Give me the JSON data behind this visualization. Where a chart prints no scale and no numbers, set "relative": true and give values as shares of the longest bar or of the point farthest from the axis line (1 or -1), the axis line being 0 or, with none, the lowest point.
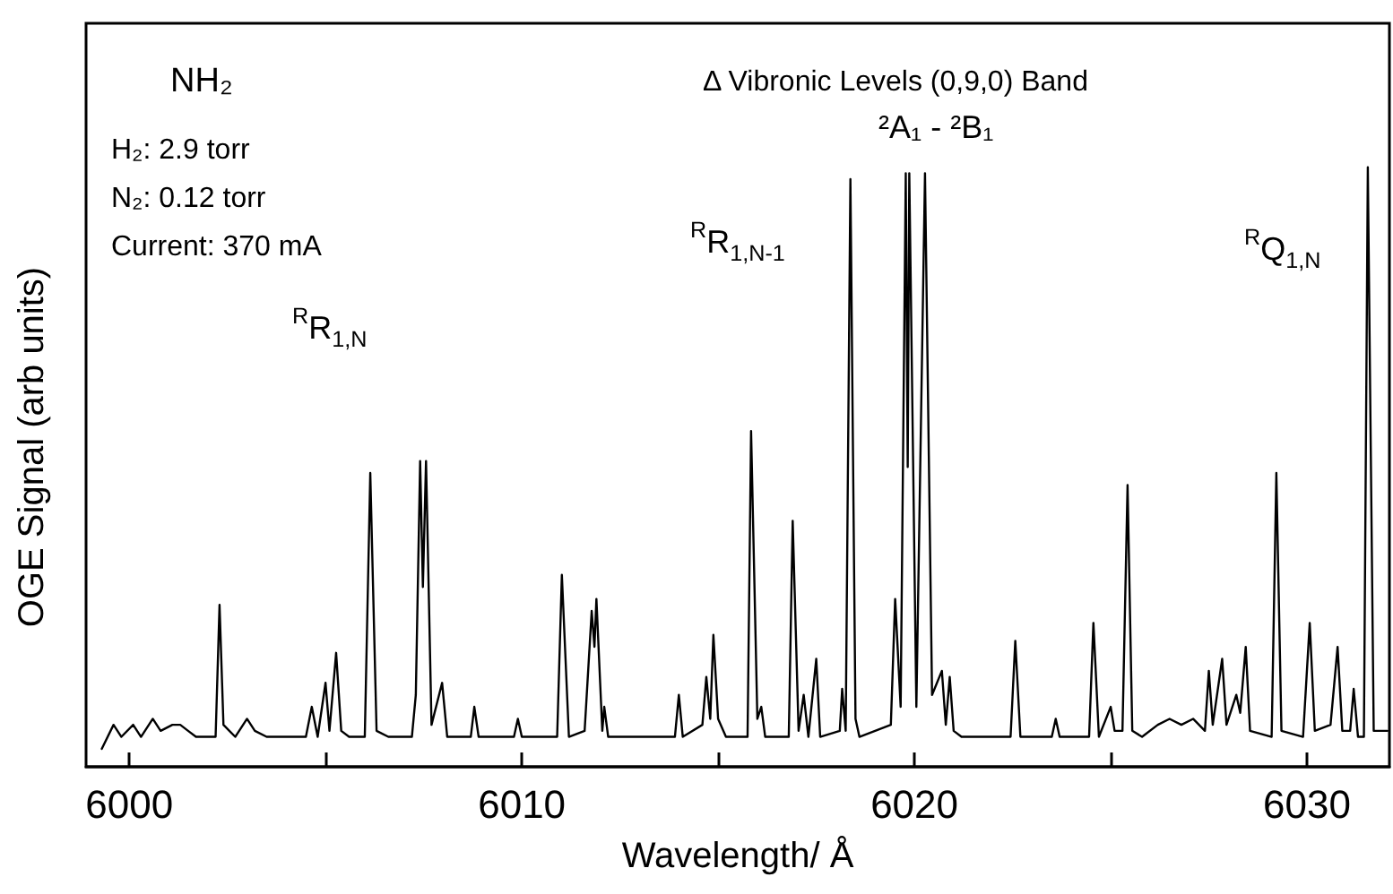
{
  "chart_data": {
    "type": "line",
    "relative": true,
    "color": "#000000",
    "marker": "none",
    "line_style": "solid",
    "grid": false,
    "xlabel": "Wavelength/ Å",
    "ylabel": "OGE Signal (arb units)",
    "xlim": [
      5998.9,
      6032.1
    ],
    "xticks": [
      6000,
      {
        "value": 6005,
        "label": null
      },
      6010,
      {
        "value": 6015,
        "label": null
      },
      6020,
      {
        "value": 6025,
        "label": null
      },
      6030
    ],
    "annotations": [
      "NH₂",
      "H₂: 2.9 torr",
      "N₂: 0.12 torr",
      "Current: 370 mA",
      "Δ Vibronic Levels (0,9,0) Band",
      "²A₁ - ²B₁",
      "$^{R}$R$_{1,N}$",
      "$^{R}$R$_{1,N-1}$",
      "$^{R}$Q$_{1,N}$"
    ],
    "x": [
      5999.3,
      5999.6,
      5999.8,
      6000.1,
      6000.3,
      6000.6,
      6000.8,
      6001.1,
      6001.3,
      6001.5,
      6001.7,
      6002.2,
      6002.3,
      6002.4,
      6002.7,
      6003.0,
      6003.2,
      6003.5,
      6004.5,
      6004.65,
      6004.8,
      6005.0,
      6005.1,
      6005.27,
      6005.4,
      6005.6,
      6006.0,
      6006.14,
      6006.3,
      6006.6,
      6007.2,
      6007.3,
      6007.41,
      6007.48,
      6007.56,
      6007.7,
      6007.97,
      6008.1,
      6008.7,
      6008.79,
      6008.9,
      6009.8,
      6009.9,
      6010.0,
      6010.9,
      6011.02,
      6011.2,
      6011.6,
      6011.78,
      6011.85,
      6011.9,
      6012.05,
      6012.1,
      6012.2,
      6013.9,
      6014.0,
      6014.1,
      6014.6,
      6014.7,
      6014.8,
      6014.88,
      6015.0,
      6015.2,
      6015.75,
      6015.84,
      6016.0,
      6016.1,
      6016.2,
      6016.8,
      6016.9,
      6017.05,
      6017.18,
      6017.3,
      6017.5,
      6017.6,
      6018.1,
      6018.16,
      6018.25,
      6018.37,
      6018.5,
      6018.6,
      6019.4,
      6019.51,
      6019.65,
      6019.78,
      6019.83,
      6019.87,
      6020.05,
      6020.27,
      6020.45,
      6020.7,
      6020.8,
      6020.9,
      6021.0,
      6021.2,
      6022.45,
      6022.57,
      6022.7,
      6023.5,
      6023.6,
      6023.7,
      6024.45,
      6024.56,
      6024.7,
      6025.0,
      6025.1,
      6025.3,
      6025.43,
      6025.55,
      6025.8,
      6026.2,
      6026.5,
      6026.8,
      6027.1,
      6027.4,
      6027.5,
      6027.6,
      6027.84,
      6027.95,
      6028.2,
      6028.3,
      6028.44,
      6028.55,
      6029.1,
      6029.22,
      6029.35,
      6029.9,
      6030.07,
      6030.2,
      6030.6,
      6030.78,
      6030.9,
      6031.1,
      6031.19,
      6031.3,
      6031.45,
      6031.55,
      6031.7,
      6032.05
    ],
    "values": [
      0.03,
      0.07,
      0.05,
      0.07,
      0.05,
      0.08,
      0.06,
      0.07,
      0.07,
      0.06,
      0.05,
      0.05,
      0.27,
      0.07,
      0.05,
      0.08,
      0.06,
      0.05,
      0.05,
      0.1,
      0.05,
      0.14,
      0.06,
      0.19,
      0.06,
      0.05,
      0.05,
      0.49,
      0.06,
      0.05,
      0.05,
      0.12,
      0.51,
      0.3,
      0.51,
      0.07,
      0.14,
      0.05,
      0.05,
      0.1,
      0.05,
      0.05,
      0.08,
      0.05,
      0.05,
      0.32,
      0.05,
      0.06,
      0.26,
      0.2,
      0.28,
      0.06,
      0.1,
      0.05,
      0.05,
      0.12,
      0.05,
      0.07,
      0.15,
      0.08,
      0.22,
      0.08,
      0.05,
      0.05,
      0.56,
      0.08,
      0.1,
      0.05,
      0.05,
      0.41,
      0.06,
      0.12,
      0.05,
      0.18,
      0.05,
      0.06,
      0.13,
      0.06,
      0.98,
      0.08,
      0.05,
      0.07,
      0.28,
      0.1,
      0.99,
      0.5,
      0.99,
      0.1,
      0.99,
      0.12,
      0.16,
      0.07,
      0.15,
      0.06,
      0.05,
      0.05,
      0.21,
      0.05,
      0.05,
      0.08,
      0.05,
      0.05,
      0.24,
      0.05,
      0.1,
      0.06,
      0.06,
      0.47,
      0.06,
      0.05,
      0.07,
      0.08,
      0.07,
      0.08,
      0.06,
      0.16,
      0.07,
      0.18,
      0.07,
      0.12,
      0.09,
      0.2,
      0.06,
      0.05,
      0.49,
      0.06,
      0.05,
      0.24,
      0.06,
      0.07,
      0.2,
      0.06,
      0.06,
      0.13,
      0.05,
      0.05,
      1.0,
      0.06,
      0.06
    ]
  }
}
